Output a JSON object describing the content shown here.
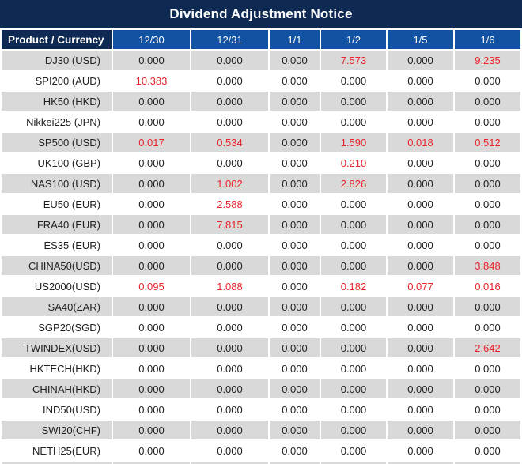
{
  "title": "Dividend Adjustment Notice",
  "colors": {
    "navy": "#0e2a52",
    "blue": "#1152a2",
    "gray": "#d9d9d9",
    "red": "#e8242b",
    "ink": "#212121"
  },
  "chart_data": {
    "type": "table",
    "title": "Dividend Adjustment Notice",
    "columns": [
      "Product / Currency",
      "12/30",
      "12/31",
      "1/1",
      "1/2",
      "1/5",
      "1/6"
    ]
  },
  "table": {
    "header": [
      "Product / Currency",
      "12/30",
      "12/31",
      "1/1",
      "1/2",
      "1/5",
      "1/6"
    ],
    "rows": [
      {
        "product": "DJ30 (USD)",
        "values": [
          "0.000",
          "0.000",
          "0.000",
          "7.573",
          "0.000",
          "9.235"
        ],
        "red": [
          3,
          5
        ]
      },
      {
        "product": "SPI200 (AUD)",
        "values": [
          "10.383",
          "0.000",
          "0.000",
          "0.000",
          "0.000",
          "0.000"
        ],
        "red": [
          0
        ]
      },
      {
        "product": "HK50 (HKD)",
        "values": [
          "0.000",
          "0.000",
          "0.000",
          "0.000",
          "0.000",
          "0.000"
        ],
        "red": []
      },
      {
        "product": "Nikkei225 (JPN)",
        "values": [
          "0.000",
          "0.000",
          "0.000",
          "0.000",
          "0.000",
          "0.000"
        ],
        "red": []
      },
      {
        "product": "SP500 (USD)",
        "values": [
          "0.017",
          "0.534",
          "0.000",
          "1.590",
          "0.018",
          "0.512"
        ],
        "red": [
          0,
          1,
          3,
          4,
          5
        ]
      },
      {
        "product": "UK100 (GBP)",
        "values": [
          "0.000",
          "0.000",
          "0.000",
          "0.210",
          "0.000",
          "0.000"
        ],
        "red": [
          3
        ]
      },
      {
        "product": "NAS100 (USD)",
        "values": [
          "0.000",
          "1.002",
          "0.000",
          "2.826",
          "0.000",
          "0.000"
        ],
        "red": [
          1,
          3
        ]
      },
      {
        "product": "EU50 (EUR)",
        "values": [
          "0.000",
          "2.588",
          "0.000",
          "0.000",
          "0.000",
          "0.000"
        ],
        "red": [
          1
        ]
      },
      {
        "product": "FRA40 (EUR)",
        "values": [
          "0.000",
          "7.815",
          "0.000",
          "0.000",
          "0.000",
          "0.000"
        ],
        "red": [
          1
        ]
      },
      {
        "product": "ES35 (EUR)",
        "values": [
          "0.000",
          "0.000",
          "0.000",
          "0.000",
          "0.000",
          "0.000"
        ],
        "red": []
      },
      {
        "product": "CHINA50(USD)",
        "values": [
          "0.000",
          "0.000",
          "0.000",
          "0.000",
          "0.000",
          "3.848"
        ],
        "red": [
          5
        ]
      },
      {
        "product": "US2000(USD)",
        "values": [
          "0.095",
          "1.088",
          "0.000",
          "0.182",
          "0.077",
          "0.016"
        ],
        "red": [
          0,
          1,
          3,
          4,
          5
        ]
      },
      {
        "product": "SA40(ZAR)",
        "values": [
          "0.000",
          "0.000",
          "0.000",
          "0.000",
          "0.000",
          "0.000"
        ],
        "red": []
      },
      {
        "product": "SGP20(SGD)",
        "values": [
          "0.000",
          "0.000",
          "0.000",
          "0.000",
          "0.000",
          "0.000"
        ],
        "red": []
      },
      {
        "product": "TWINDEX(USD)",
        "values": [
          "0.000",
          "0.000",
          "0.000",
          "0.000",
          "0.000",
          "2.642"
        ],
        "red": [
          5
        ]
      },
      {
        "product": "HKTECH(HKD)",
        "values": [
          "0.000",
          "0.000",
          "0.000",
          "0.000",
          "0.000",
          "0.000"
        ],
        "red": []
      },
      {
        "product": "CHINAH(HKD)",
        "values": [
          "0.000",
          "0.000",
          "0.000",
          "0.000",
          "0.000",
          "0.000"
        ],
        "red": []
      },
      {
        "product": "IND50(USD)",
        "values": [
          "0.000",
          "0.000",
          "0.000",
          "0.000",
          "0.000",
          "0.000"
        ],
        "red": []
      },
      {
        "product": "SWI20(CHF)",
        "values": [
          "0.000",
          "0.000",
          "0.000",
          "0.000",
          "0.000",
          "0.000"
        ],
        "red": []
      },
      {
        "product": "NETH25(EUR)",
        "values": [
          "0.000",
          "0.000",
          "0.000",
          "0.000",
          "0.000",
          "0.000"
        ],
        "red": []
      }
    ]
  }
}
